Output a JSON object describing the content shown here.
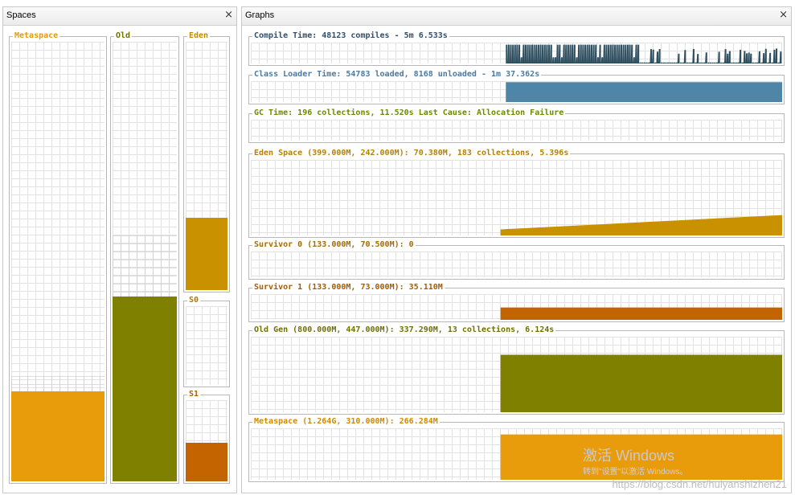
{
  "spaces_panel": {
    "title": "Spaces",
    "close": "×",
    "pools": [
      {
        "key": "metaspace",
        "label": "Metaspace",
        "color": "#e89c0c",
        "label_color": "#e09a10",
        "capacity_fraction": 0.24,
        "used_fraction": 0.205
      },
      {
        "key": "old",
        "label": "Old",
        "color": "#7f7f00",
        "label_color": "#707000",
        "capacity_fraction": 0.56,
        "used_fraction": 0.42
      },
      {
        "key": "eden",
        "label": "Eden",
        "color": "#c99100",
        "label_color": "#c08a00",
        "capacity_fraction": 1.0,
        "used_fraction": 0.29
      },
      {
        "key": "s0",
        "label": "S0",
        "color": "#c99100",
        "label_color": "#b07800",
        "capacity_fraction": 1.0,
        "used_fraction": 0.0
      },
      {
        "key": "s1",
        "label": "S1",
        "color": "#c46400",
        "label_color": "#b06000",
        "capacity_fraction": 1.0,
        "used_fraction": 0.48
      }
    ]
  },
  "graphs_panel": {
    "title": "Graphs",
    "close": "×",
    "graphs": [
      {
        "key": "compile",
        "label": "Compile Time: 48123 compiles - 5m 6.533s",
        "label_color": "#2f4f6f",
        "color": "#2f5060",
        "style": "spikes",
        "start_fraction": 0.48,
        "level": 0.9
      },
      {
        "key": "classloader",
        "label": "Class Loader Time: 54783 loaded, 8168 unloaded - 1m 37.362s",
        "label_color": "#4a7aa0",
        "color": "#4f86a8",
        "style": "solid",
        "start_fraction": 0.48,
        "level": 0.95
      },
      {
        "key": "gc",
        "label": "GC Time: 196 collections, 11.520s  Last Cause: Allocation Failure",
        "label_color": "#6a8a00",
        "color": "#7f9f00",
        "style": "none",
        "start_fraction": 0.48,
        "level": 0
      },
      {
        "key": "eden",
        "label": "Eden Space (399.000M, 242.000M): 70.380M, 183 collections, 5.396s",
        "label_color": "#b88000",
        "color": "#c99100",
        "style": "ramp",
        "start_fraction": 0.47,
        "level": 0.27,
        "level_start": 0.08
      },
      {
        "key": "s0",
        "label": "Survivor 0 (133.000M, 70.500M): 0",
        "label_color": "#a86a00",
        "color": "#c99100",
        "style": "none",
        "start_fraction": 0.47,
        "level": 0
      },
      {
        "key": "s1",
        "label": "Survivor 1 (133.000M, 73.000M): 35.110M",
        "label_color": "#a85a00",
        "color": "#c46400",
        "style": "solid",
        "start_fraction": 0.47,
        "level": 0.48
      },
      {
        "key": "old",
        "label": "Old Gen (800.000M, 447.000M): 337.290M, 13 collections, 6.124s",
        "label_color": "#707000",
        "color": "#7f7f00",
        "style": "solid",
        "start_fraction": 0.47,
        "level": 0.76
      },
      {
        "key": "metaspace",
        "label": "Metaspace (1.264G, 310.000M): 266.284M",
        "label_color": "#d08a00",
        "color": "#e89c0c",
        "style": "solid",
        "start_fraction": 0.47,
        "level": 0.88
      }
    ]
  },
  "watermark": {
    "line1": "激活 Windows",
    "line2": "转到\"设置\"以激活 Windows。"
  },
  "url": "https://blog.csdn.net/huiyanshizhen21"
}
